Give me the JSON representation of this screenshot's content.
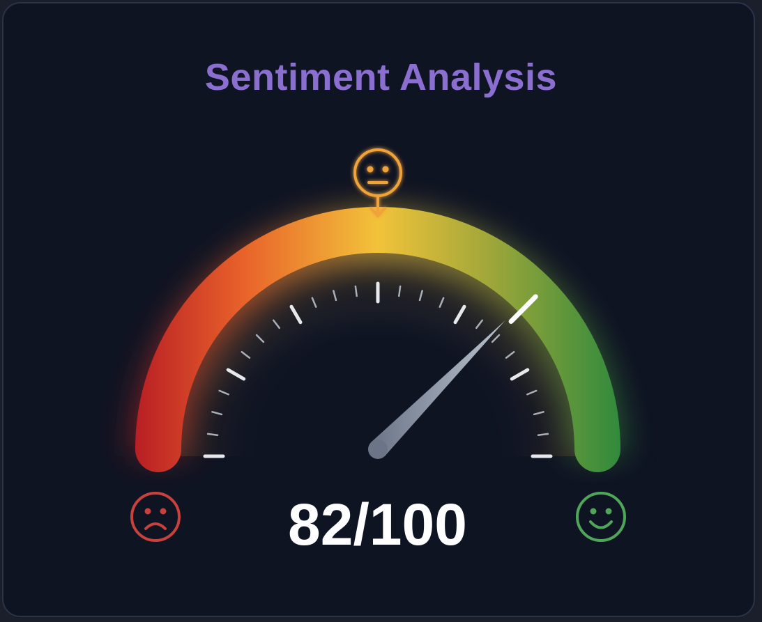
{
  "title": "Sentiment Analysis",
  "score": {
    "value": 82,
    "max": 100,
    "label": "82/100"
  },
  "icons": {
    "negative": "sad-face-icon",
    "neutral": "neutral-face-icon",
    "positive": "happy-face-icon"
  },
  "colors": {
    "negative": "#c8332a",
    "neutral": "#f0a23a",
    "positive": "#3f9a45",
    "title": "#8a6fd0",
    "background": "#0f1423"
  }
}
